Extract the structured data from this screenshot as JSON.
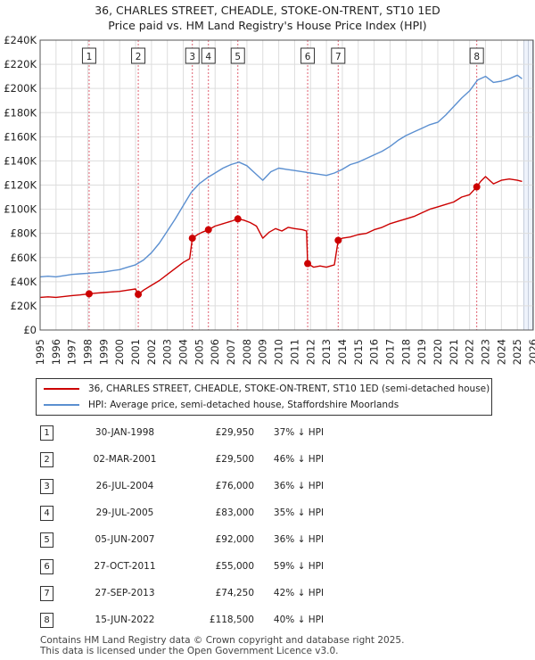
{
  "title_line1": "36, CHARLES STREET, CHEADLE, STOKE-ON-TRENT, ST10 1ED",
  "title_line2": "Price paid vs. HM Land Registry's House Price Index (HPI)",
  "legend": {
    "property_label": "36, CHARLES STREET, CHEADLE, STOKE-ON-TRENT, ST10 1ED (semi-detached house)",
    "hpi_label": "HPI: Average price, semi-detached house, Staffordshire Moorlands"
  },
  "colors": {
    "property": "#cc0000",
    "hpi": "#5b8fd0",
    "marker_line": "#e06070",
    "shade": "#eef3fb"
  },
  "sales": [
    {
      "num": "1",
      "date": "30-JAN-1998",
      "price": "£29,950",
      "hpi_diff": "37% ↓ HPI"
    },
    {
      "num": "2",
      "date": "02-MAR-2001",
      "price": "£29,500",
      "hpi_diff": "46% ↓ HPI"
    },
    {
      "num": "3",
      "date": "26-JUL-2004",
      "price": "£76,000",
      "hpi_diff": "36% ↓ HPI"
    },
    {
      "num": "4",
      "date": "29-JUL-2005",
      "price": "£83,000",
      "hpi_diff": "35% ↓ HPI"
    },
    {
      "num": "5",
      "date": "05-JUN-2007",
      "price": "£92,000",
      "hpi_diff": "36% ↓ HPI"
    },
    {
      "num": "6",
      "date": "27-OCT-2011",
      "price": "£55,000",
      "hpi_diff": "59% ↓ HPI"
    },
    {
      "num": "7",
      "date": "27-SEP-2013",
      "price": "£74,250",
      "hpi_diff": "42% ↓ HPI"
    },
    {
      "num": "8",
      "date": "15-JUN-2022",
      "price": "£118,500",
      "hpi_diff": "40% ↓ HPI"
    }
  ],
  "footer_line1": "Contains HM Land Registry data © Crown copyright and database right 2025.",
  "footer_line2": "This data is licensed under the Open Government Licence v3.0.",
  "chart_data": {
    "type": "line",
    "title": "36, CHARLES STREET, CHEADLE, STOKE-ON-TRENT, ST10 1ED Price paid vs. HM Land Registry's House Price Index (HPI)",
    "xlabel": "",
    "ylabel": "",
    "xlim": [
      1995,
      2026
    ],
    "ylim": [
      0,
      240000
    ],
    "x_ticks": [
      1995,
      1996,
      1997,
      1998,
      1999,
      2000,
      2001,
      2002,
      2003,
      2004,
      2005,
      2006,
      2007,
      2008,
      2009,
      2010,
      2011,
      2012,
      2013,
      2014,
      2015,
      2016,
      2017,
      2018,
      2019,
      2020,
      2021,
      2022,
      2023,
      2024,
      2025,
      2026
    ],
    "y_ticks": [
      0,
      20000,
      40000,
      60000,
      80000,
      100000,
      120000,
      140000,
      160000,
      180000,
      200000,
      220000,
      240000
    ],
    "y_tick_labels": [
      "£0",
      "£20K",
      "£40K",
      "£60K",
      "£80K",
      "£100K",
      "£120K",
      "£140K",
      "£160K",
      "£180K",
      "£200K",
      "£220K",
      "£240K"
    ],
    "grid": true,
    "future_shade_from": 2025.4,
    "sale_markers": [
      {
        "label": "1",
        "x": 1998.08,
        "y": 29950
      },
      {
        "label": "2",
        "x": 2001.17,
        "y": 29500
      },
      {
        "label": "3",
        "x": 2004.57,
        "y": 76000
      },
      {
        "label": "4",
        "x": 2005.58,
        "y": 83000
      },
      {
        "label": "5",
        "x": 2007.43,
        "y": 92000
      },
      {
        "label": "6",
        "x": 2011.82,
        "y": 55000
      },
      {
        "label": "7",
        "x": 2013.74,
        "y": 74250
      },
      {
        "label": "8",
        "x": 2022.45,
        "y": 118500
      }
    ],
    "series": [
      {
        "name": "36, CHARLES STREET, CHEADLE, STOKE-ON-TRENT, ST10 1ED (semi-detached house)",
        "x": [
          1995,
          1995.5,
          1996,
          1996.5,
          1997,
          1997.5,
          1998.08,
          1998.5,
          1999,
          1999.5,
          2000,
          2000.5,
          2001,
          2001.17,
          2001.5,
          2002,
          2002.5,
          2003,
          2003.5,
          2004,
          2004.4,
          2004.57,
          2004.9,
          2005.2,
          2005.58,
          2006,
          2006.5,
          2007,
          2007.43,
          2007.8,
          2008.2,
          2008.6,
          2009,
          2009.4,
          2009.8,
          2010.2,
          2010.6,
          2011,
          2011.5,
          2011.75,
          2011.82,
          2012.2,
          2012.6,
          2013,
          2013.5,
          2013.74,
          2014,
          2014.5,
          2015,
          2015.5,
          2016,
          2016.5,
          2017,
          2017.5,
          2018,
          2018.5,
          2019,
          2019.5,
          2020,
          2020.5,
          2021,
          2021.5,
          2022,
          2022.45,
          2022.7,
          2023,
          2023.5,
          2024,
          2024.5,
          2025,
          2025.3
        ],
        "values": [
          27000,
          27500,
          27000,
          27800,
          28500,
          29000,
          29950,
          30500,
          31000,
          31500,
          32000,
          33000,
          34000,
          29500,
          33000,
          37000,
          41000,
          46000,
          51000,
          56000,
          59000,
          76000,
          79000,
          81000,
          83000,
          86000,
          88000,
          90000,
          92000,
          91000,
          89000,
          86000,
          76000,
          81000,
          84000,
          82000,
          85000,
          84000,
          83000,
          82000,
          55000,
          52000,
          53000,
          52000,
          54000,
          74250,
          76000,
          77000,
          79000,
          80000,
          83000,
          85000,
          88000,
          90000,
          92000,
          94000,
          97000,
          100000,
          102000,
          104000,
          106000,
          110000,
          112000,
          118500,
          123000,
          127000,
          121000,
          124000,
          125000,
          124000,
          123000
        ]
      },
      {
        "name": "HPI: Average price, semi-detached house, Staffordshire Moorlands",
        "x": [
          1995,
          1995.5,
          1996,
          1996.5,
          1997,
          1997.5,
          1998,
          1998.5,
          1999,
          1999.5,
          2000,
          2000.5,
          2001,
          2001.5,
          2002,
          2002.5,
          2003,
          2003.5,
          2004,
          2004.5,
          2005,
          2005.5,
          2006,
          2006.5,
          2007,
          2007.5,
          2008,
          2008.5,
          2009,
          2009.5,
          2010,
          2010.5,
          2011,
          2011.5,
          2012,
          2012.5,
          2013,
          2013.5,
          2014,
          2014.5,
          2015,
          2015.5,
          2016,
          2016.5,
          2017,
          2017.5,
          2018,
          2018.5,
          2019,
          2019.5,
          2020,
          2020.5,
          2021,
          2021.5,
          2022,
          2022.5,
          2023,
          2023.5,
          2024,
          2024.5,
          2025,
          2025.3
        ],
        "values": [
          44000,
          44500,
          44000,
          45000,
          46000,
          46500,
          47000,
          47500,
          48000,
          49000,
          50000,
          52000,
          54000,
          58000,
          64000,
          72000,
          82000,
          92000,
          103000,
          114000,
          121000,
          126000,
          130000,
          134000,
          137000,
          139000,
          136000,
          130000,
          124000,
          131000,
          134000,
          133000,
          132000,
          131000,
          130000,
          129000,
          128000,
          130000,
          133000,
          137000,
          139000,
          142000,
          145000,
          148000,
          152000,
          157000,
          161000,
          164000,
          167000,
          170000,
          172000,
          178000,
          185000,
          192000,
          198000,
          207000,
          210000,
          205000,
          206000,
          208000,
          211000,
          208000
        ]
      }
    ]
  }
}
